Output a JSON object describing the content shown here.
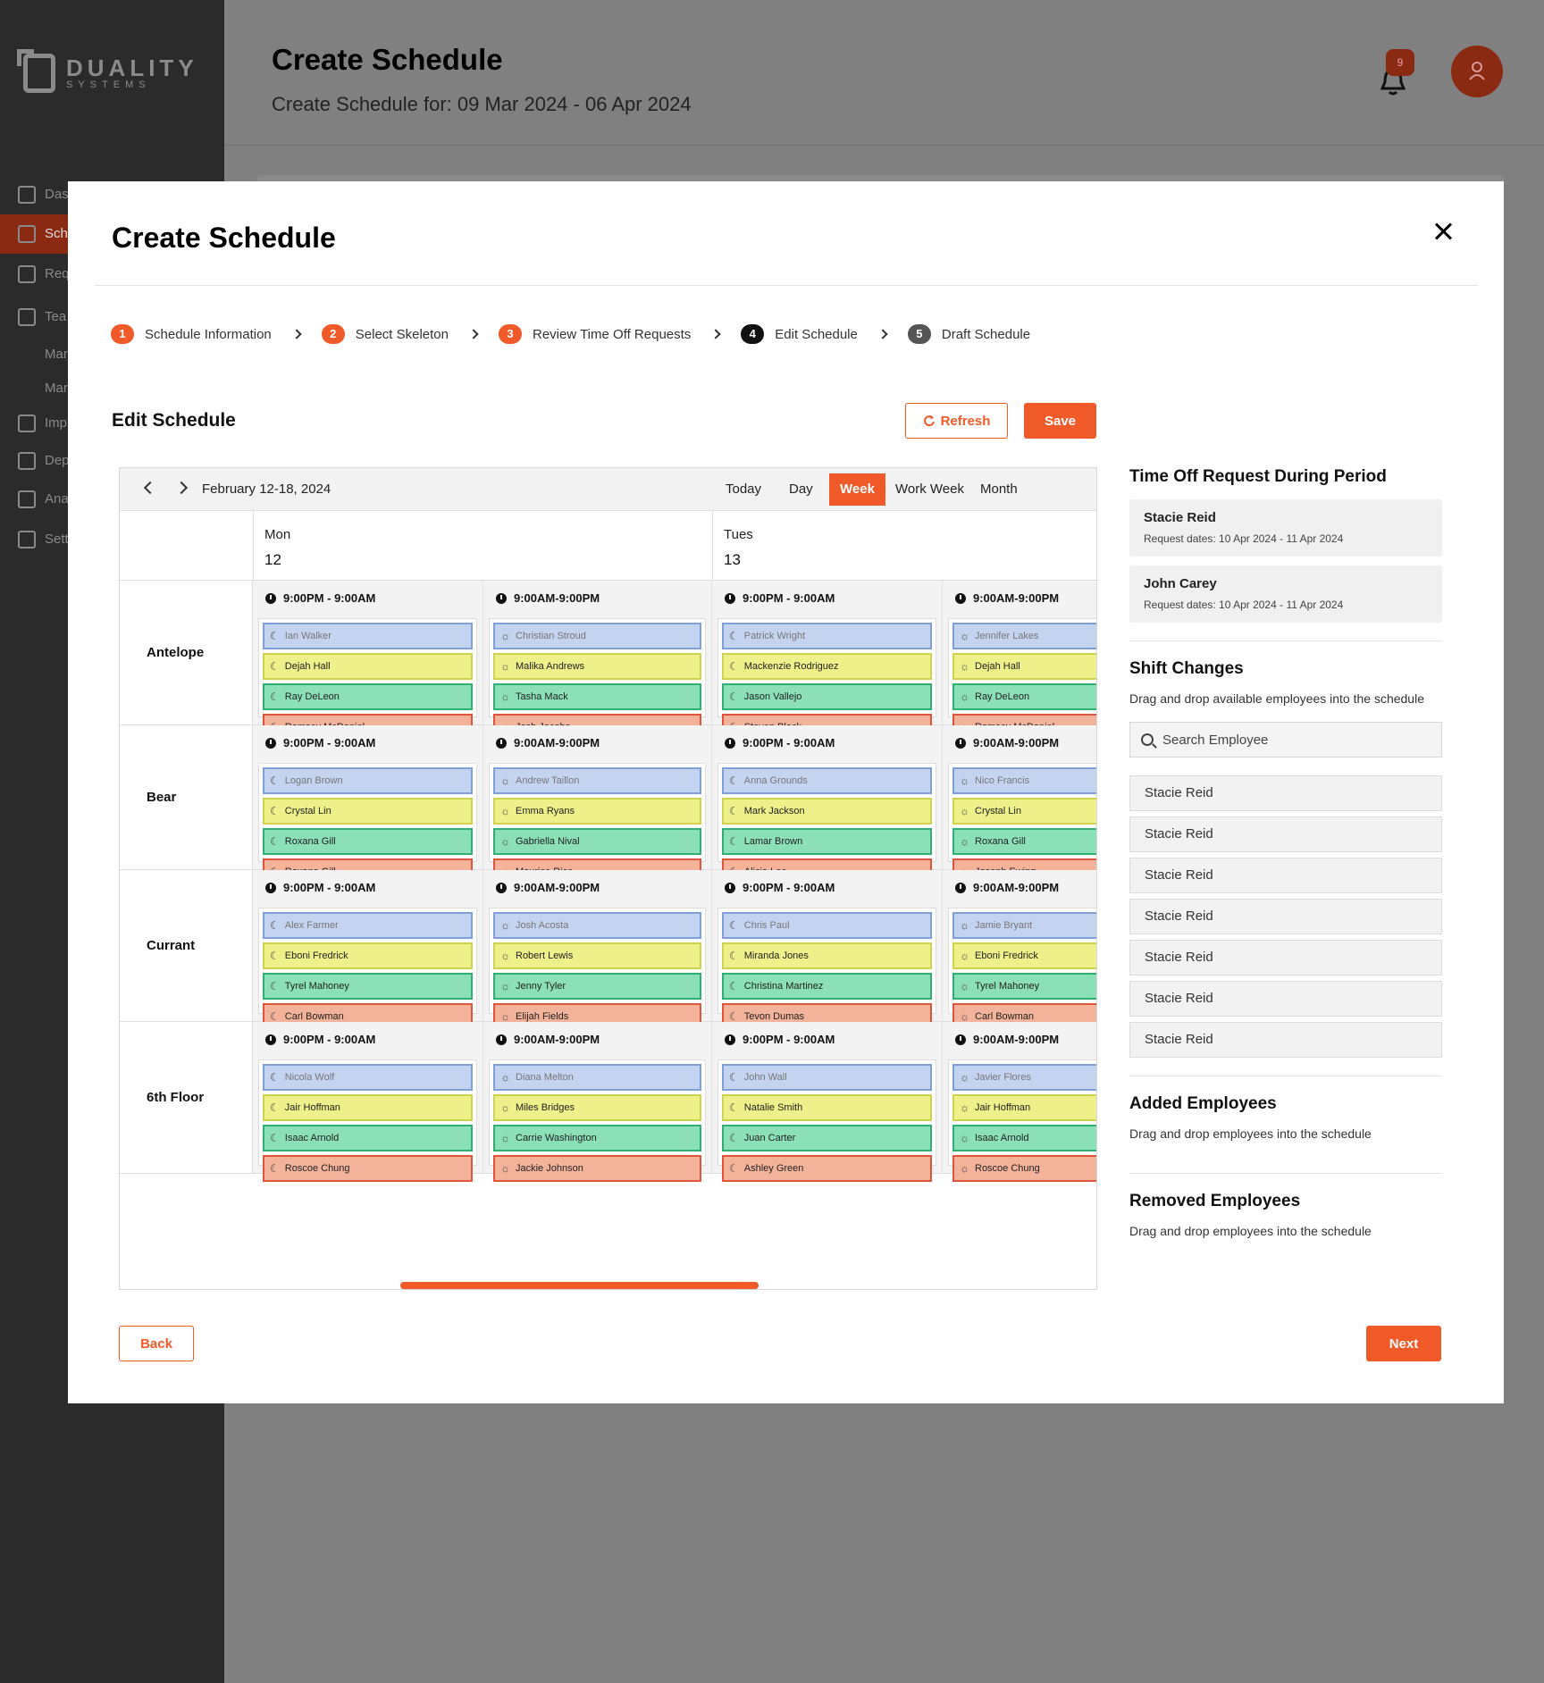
{
  "app": {
    "logo_main": "DUALITY",
    "logo_sub": "SYSTEMS",
    "page_title": "Create Schedule",
    "page_subtitle": "Create Schedule for: 09 Mar 2024 - 06 Apr 2024",
    "notification_count": "9",
    "nav": [
      "Das",
      "Sch",
      "Req",
      "Tea",
      "Mar",
      "Mar",
      "Imp",
      "Dep",
      "Anal",
      "Setti"
    ]
  },
  "modal": {
    "title": "Create Schedule",
    "steps": [
      {
        "num": "1",
        "label": "Schedule Information"
      },
      {
        "num": "2",
        "label": "Select Skeleton"
      },
      {
        "num": "3",
        "label": "Review Time Off Requests"
      },
      {
        "num": "4",
        "label": "Edit Schedule"
      },
      {
        "num": "5",
        "label": "Draft Schedule"
      }
    ],
    "section_title": "Edit Schedule",
    "refresh_label": "Refresh",
    "save_label": "Save",
    "back_label": "Back",
    "next_label": "Next"
  },
  "calendar": {
    "range": "February 12-18, 2024",
    "views": [
      "Today",
      "Day",
      "Week",
      "Work Week",
      "Month"
    ],
    "active_view": "Week",
    "days": [
      {
        "name": "Mon",
        "date": "12"
      },
      {
        "name": "Tues",
        "date": "13"
      }
    ],
    "rows": [
      {
        "label": "Antelope",
        "shifts": [
          {
            "time": "9:00PM - 9:00AM",
            "type": "night",
            "employees": [
              "Ian Walker",
              "Dejah Hall",
              "Ray DeLeon",
              "Ramsey McDaniel"
            ]
          },
          {
            "time": "9:00AM-9:00PM",
            "type": "day",
            "employees": [
              "Christian Stroud",
              "Malika Andrews",
              "Tasha Mack",
              "Josh Jacobs"
            ]
          },
          {
            "time": "9:00PM - 9:00AM",
            "type": "night",
            "employees": [
              "Patrick Wright",
              "Mackenzie Rodriguez",
              "Jason Vallejo",
              "Steven Black"
            ]
          },
          {
            "time": "9:00AM-9:00PM",
            "type": "day",
            "employees": [
              "Jennifer Lakes",
              "Dejah Hall",
              "Ray DeLeon",
              "Ramsey McDaniel"
            ]
          }
        ]
      },
      {
        "label": "Bear",
        "shifts": [
          {
            "time": "9:00PM - 9:00AM",
            "type": "night",
            "employees": [
              "Logan Brown",
              "Crystal Lin",
              "Roxana Gill",
              "Roxana Gill"
            ]
          },
          {
            "time": "9:00AM-9:00PM",
            "type": "day",
            "employees": [
              "Andrew Taillon",
              "Emma Ryans",
              "Gabriella Nival",
              "Maurice Rice"
            ]
          },
          {
            "time": "9:00PM - 9:00AM",
            "type": "night",
            "employees": [
              "Anna Grounds",
              "Mark Jackson",
              "Lamar Brown",
              "Alicia Lee"
            ]
          },
          {
            "time": "9:00AM-9:00PM",
            "type": "day",
            "employees": [
              "Nico Francis",
              "Crystal Lin",
              "Roxana Gill",
              "Joseph Ewing"
            ]
          }
        ]
      },
      {
        "label": "Currant",
        "shifts": [
          {
            "time": "9:00PM - 9:00AM",
            "type": "night",
            "employees": [
              "Alex Farmer",
              "Eboni Fredrick",
              "Tyrel Mahoney",
              "Carl Bowman"
            ]
          },
          {
            "time": "9:00AM-9:00PM",
            "type": "day",
            "employees": [
              "Josh Acosta",
              "Robert Lewis",
              "Jenny Tyler",
              "Elijah Fields"
            ]
          },
          {
            "time": "9:00PM - 9:00AM",
            "type": "night",
            "employees": [
              "Chris Paul",
              "Miranda Jones",
              "Christina Martinez",
              "Tevon Dumas"
            ]
          },
          {
            "time": "9:00AM-9:00PM",
            "type": "day",
            "employees": [
              "Jamie Bryant",
              "Eboni Fredrick",
              "Tyrel Mahoney",
              "Carl Bowman"
            ]
          }
        ]
      },
      {
        "label": "6th Floor",
        "shifts": [
          {
            "time": "9:00PM - 9:00AM",
            "type": "night",
            "employees": [
              "Nicola Wolf",
              "Jair Hoffman",
              "Isaac Arnold",
              "Roscoe Chung"
            ]
          },
          {
            "time": "9:00AM-9:00PM",
            "type": "day",
            "employees": [
              "Diana Melton",
              "Miles Bridges",
              "Carrie Washington",
              "Jackie Johnson"
            ]
          },
          {
            "time": "9:00PM - 9:00AM",
            "type": "night",
            "employees": [
              "John Wall",
              "Natalie Smith",
              "Juan Carter",
              "Ashley Green"
            ]
          },
          {
            "time": "9:00AM-9:00PM",
            "type": "day",
            "employees": [
              "Javier Flores",
              "Jair Hoffman",
              "Isaac Arnold",
              "Roscoe Chung"
            ]
          }
        ]
      }
    ],
    "slot_colors": [
      "blue",
      "yellow",
      "green",
      "red"
    ]
  },
  "sidebar_panel": {
    "time_off_title": "Time Off Request During Period",
    "time_off": [
      {
        "name": "Stacie Reid",
        "dates": "Request dates: 10 Apr 2024 - 11 Apr 2024"
      },
      {
        "name": "John Carey",
        "dates": "Request dates: 10 Apr 2024 - 11 Apr 2024"
      }
    ],
    "shift_changes_title": "Shift Changes",
    "shift_changes_desc": "Drag and drop available employees into the schedule",
    "search_placeholder": "Search Employee",
    "available": [
      "Stacie Reid",
      "Stacie Reid",
      "Stacie Reid",
      "Stacie Reid",
      "Stacie Reid",
      "Stacie Reid",
      "Stacie Reid"
    ],
    "added_title": "Added Employees",
    "added_desc": "Drag and drop employees into the schedule",
    "removed_title": "Removed Employees",
    "removed_desc": "Drag and drop employees into the schedule"
  }
}
